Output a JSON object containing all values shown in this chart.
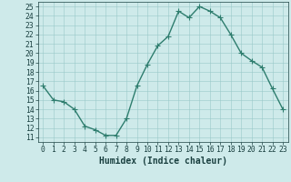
{
  "x": [
    0,
    1,
    2,
    3,
    4,
    5,
    6,
    7,
    8,
    9,
    10,
    11,
    12,
    13,
    14,
    15,
    16,
    17,
    18,
    19,
    20,
    21,
    22,
    23
  ],
  "y": [
    16.5,
    15.0,
    14.8,
    14.0,
    12.2,
    11.8,
    11.2,
    11.2,
    13.0,
    16.5,
    18.8,
    20.8,
    21.8,
    24.5,
    23.8,
    25.0,
    24.5,
    23.8,
    22.0,
    20.0,
    19.2,
    18.5,
    16.2,
    14.0
  ],
  "xlabel": "Humidex (Indice chaleur)",
  "xlim": [
    -0.5,
    23.5
  ],
  "ylim": [
    10.5,
    25.5
  ],
  "yticks": [
    11,
    12,
    13,
    14,
    15,
    16,
    17,
    18,
    19,
    20,
    21,
    22,
    23,
    24,
    25
  ],
  "xticks": [
    0,
    1,
    2,
    3,
    4,
    5,
    6,
    7,
    8,
    9,
    10,
    11,
    12,
    13,
    14,
    15,
    16,
    17,
    18,
    19,
    20,
    21,
    22,
    23
  ],
  "line_color": "#2e7d6e",
  "marker_color": "#2e7d6e",
  "bg_color": "#ceeaea",
  "grid_color": "#99c8c8",
  "tick_label_color": "#1a4040",
  "xlabel_color": "#1a4040",
  "xlabel_fontsize": 7,
  "tick_fontsize": 5.8,
  "linewidth": 1.0,
  "markersize": 2.0
}
